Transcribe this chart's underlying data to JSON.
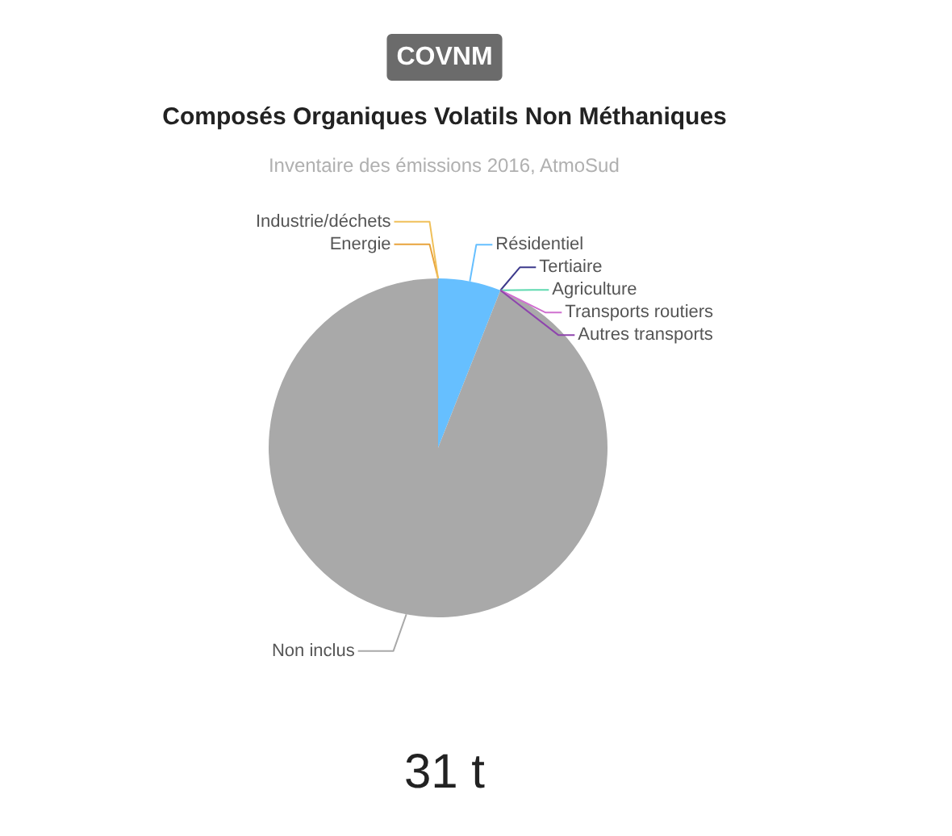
{
  "chart_data": {
    "type": "pie",
    "title": "COVNM",
    "subtitle": "Composés Organiques Volatils Non Méthaniques",
    "annotations": [
      "Inventaire des émissions 2016, AtmoSud",
      "31 t"
    ],
    "categories": [
      "Energie",
      "Industrie/déchets",
      "Résidentiel",
      "Tertiaire",
      "Agriculture",
      "Transports routiers",
      "Autres transports",
      "Non inclus"
    ],
    "values": [
      0,
      0,
      6,
      0,
      0,
      0,
      0,
      94
    ],
    "colors": [
      "#e8a33c",
      "#f0c05a",
      "#66bfff",
      "#3d3a8c",
      "#5fd9b0",
      "#d070d0",
      "#8e44ad",
      "#a9a9a9"
    ]
  }
}
